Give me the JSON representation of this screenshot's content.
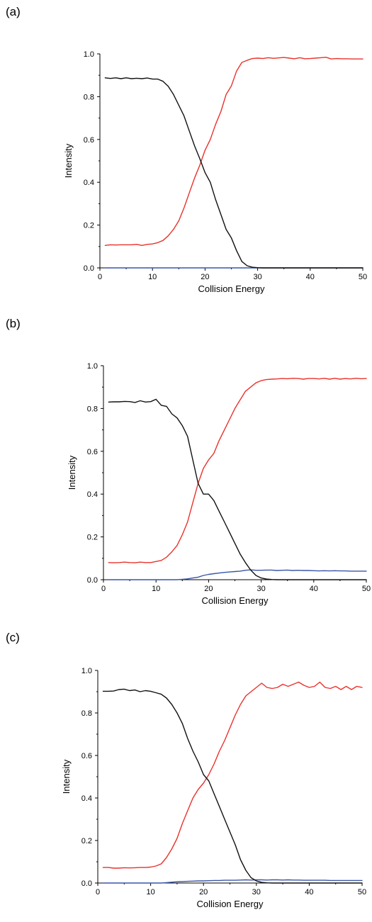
{
  "colors": {
    "black": "#111111",
    "red": "#e8322c",
    "blue": "#3a55a8"
  },
  "chart_data": [
    {
      "panel": "(a)",
      "type": "line",
      "xlabel": "Collision Energy",
      "ylabel": "Intensity",
      "xlim": [
        0,
        50
      ],
      "ylim": [
        0,
        1.0
      ],
      "xticks": [
        "0",
        "10",
        "20",
        "30",
        "40",
        "50"
      ],
      "yticks": [
        "0.0",
        "0.2",
        "0.4",
        "0.6",
        "0.8",
        "1.0"
      ],
      "x": [
        1,
        2,
        3,
        4,
        5,
        6,
        7,
        8,
        9,
        10,
        11,
        12,
        13,
        14,
        15,
        16,
        17,
        18,
        19,
        20,
        21,
        22,
        23,
        24,
        25,
        26,
        27,
        28,
        29,
        30,
        31,
        32,
        33,
        34,
        35,
        36,
        37,
        38,
        39,
        40,
        41,
        42,
        43,
        44,
        45,
        46,
        47,
        48,
        49,
        50
      ],
      "series": [
        {
          "color": "black",
          "values": [
            0.888,
            0.885,
            0.888,
            0.884,
            0.888,
            0.884,
            0.886,
            0.884,
            0.887,
            0.882,
            0.882,
            0.872,
            0.848,
            0.81,
            0.76,
            0.71,
            0.64,
            0.57,
            0.51,
            0.445,
            0.4,
            0.32,
            0.25,
            0.18,
            0.14,
            0.08,
            0.03,
            0.01,
            0.003,
            0.001,
            0,
            0,
            0,
            0,
            0,
            0,
            0,
            0,
            0,
            0,
            0,
            0,
            0,
            0,
            0,
            0,
            0,
            0,
            0,
            0
          ]
        },
        {
          "color": "red",
          "values": [
            0.105,
            0.108,
            0.107,
            0.108,
            0.108,
            0.108,
            0.11,
            0.105,
            0.11,
            0.112,
            0.118,
            0.128,
            0.15,
            0.18,
            0.22,
            0.28,
            0.35,
            0.42,
            0.48,
            0.55,
            0.6,
            0.67,
            0.73,
            0.81,
            0.85,
            0.92,
            0.96,
            0.97,
            0.978,
            0.98,
            0.978,
            0.982,
            0.979,
            0.981,
            0.983,
            0.98,
            0.977,
            0.982,
            0.977,
            0.978,
            0.98,
            0.982,
            0.984,
            0.976,
            0.978,
            0.977,
            0.977,
            0.976,
            0.976,
            0.976
          ]
        },
        {
          "color": "blue",
          "values": [
            0,
            0,
            0,
            0,
            0,
            0,
            0,
            0,
            0,
            0,
            0,
            0,
            0,
            0,
            0,
            0,
            0,
            0,
            0,
            0,
            0,
            0,
            0,
            0,
            0,
            0,
            0,
            0,
            0,
            0,
            0,
            0,
            0,
            0,
            0,
            0,
            0,
            0,
            0,
            0,
            0,
            0,
            0,
            0,
            0,
            0,
            0,
            0,
            0,
            0
          ]
        }
      ]
    },
    {
      "panel": "(b)",
      "type": "line",
      "xlabel": "Collision Energy",
      "ylabel": "Intensity",
      "xlim": [
        0,
        50
      ],
      "ylim": [
        0,
        1.0
      ],
      "xticks": [
        "0",
        "10",
        "20",
        "30",
        "40",
        "50"
      ],
      "yticks": [
        "0.0",
        "0.2",
        "0.4",
        "0.6",
        "0.8",
        "1.0"
      ],
      "x": [
        1,
        2,
        3,
        4,
        5,
        6,
        7,
        8,
        9,
        10,
        11,
        12,
        13,
        14,
        15,
        16,
        17,
        18,
        19,
        20,
        21,
        22,
        23,
        24,
        25,
        26,
        27,
        28,
        29,
        30,
        31,
        32,
        33,
        34,
        35,
        36,
        37,
        38,
        39,
        40,
        41,
        42,
        43,
        44,
        45,
        46,
        47,
        48,
        49,
        50
      ],
      "series": [
        {
          "color": "black",
          "values": [
            0.83,
            0.831,
            0.831,
            0.833,
            0.832,
            0.828,
            0.836,
            0.83,
            0.832,
            0.843,
            0.815,
            0.81,
            0.775,
            0.756,
            0.72,
            0.67,
            0.56,
            0.45,
            0.4,
            0.4,
            0.37,
            0.32,
            0.27,
            0.22,
            0.17,
            0.12,
            0.08,
            0.045,
            0.02,
            0.008,
            0.003,
            0.001,
            0,
            0,
            0,
            0,
            0,
            0,
            0,
            0,
            0,
            0,
            0,
            0,
            0,
            0,
            0,
            0,
            0,
            0
          ]
        },
        {
          "color": "red",
          "values": [
            0.08,
            0.079,
            0.08,
            0.082,
            0.08,
            0.079,
            0.082,
            0.08,
            0.08,
            0.085,
            0.09,
            0.105,
            0.13,
            0.16,
            0.21,
            0.27,
            0.36,
            0.45,
            0.52,
            0.56,
            0.59,
            0.65,
            0.7,
            0.75,
            0.8,
            0.84,
            0.88,
            0.9,
            0.92,
            0.93,
            0.935,
            0.937,
            0.938,
            0.94,
            0.939,
            0.941,
            0.94,
            0.937,
            0.94,
            0.94,
            0.938,
            0.941,
            0.937,
            0.941,
            0.937,
            0.94,
            0.938,
            0.941,
            0.939,
            0.94
          ]
        },
        {
          "color": "blue",
          "values": [
            0,
            0,
            0,
            0,
            0,
            0,
            0,
            0,
            0,
            0,
            0,
            0,
            0,
            0,
            0.002,
            0.004,
            0.008,
            0.012,
            0.02,
            0.025,
            0.028,
            0.031,
            0.034,
            0.036,
            0.038,
            0.04,
            0.044,
            0.046,
            0.044,
            0.044,
            0.045,
            0.045,
            0.043,
            0.044,
            0.045,
            0.043,
            0.044,
            0.043,
            0.043,
            0.042,
            0.041,
            0.042,
            0.041,
            0.042,
            0.041,
            0.041,
            0.04,
            0.04,
            0.04,
            0.04
          ]
        }
      ]
    },
    {
      "panel": "(c)",
      "type": "line",
      "xlabel": "Collision Energy",
      "ylabel": "Intensity",
      "xlim": [
        0,
        50
      ],
      "ylim": [
        0,
        1.0
      ],
      "xticks": [
        "0",
        "10",
        "20",
        "30",
        "40",
        "50"
      ],
      "yticks": [
        "0.0",
        "0.2",
        "0.4",
        "0.6",
        "0.8",
        "1.0"
      ],
      "x": [
        1,
        2,
        3,
        4,
        5,
        6,
        7,
        8,
        9,
        10,
        11,
        12,
        13,
        14,
        15,
        16,
        17,
        18,
        19,
        20,
        21,
        22,
        23,
        24,
        25,
        26,
        27,
        28,
        29,
        30,
        31,
        32,
        33,
        34,
        35,
        36,
        37,
        38,
        39,
        40,
        41,
        42,
        43,
        44,
        45,
        46,
        47,
        48,
        49,
        50
      ],
      "series": [
        {
          "color": "black",
          "values": [
            0.902,
            0.902,
            0.903,
            0.91,
            0.912,
            0.905,
            0.908,
            0.9,
            0.905,
            0.902,
            0.895,
            0.888,
            0.87,
            0.84,
            0.8,
            0.75,
            0.68,
            0.62,
            0.57,
            0.51,
            0.48,
            0.42,
            0.36,
            0.3,
            0.24,
            0.18,
            0.11,
            0.06,
            0.025,
            0.01,
            0.003,
            0.001,
            0,
            0,
            0,
            0,
            0,
            0,
            0,
            0,
            0,
            0,
            0,
            0,
            0,
            0,
            0,
            0,
            0,
            0
          ]
        },
        {
          "color": "red",
          "values": [
            0.073,
            0.073,
            0.07,
            0.07,
            0.072,
            0.071,
            0.072,
            0.073,
            0.073,
            0.075,
            0.08,
            0.09,
            0.12,
            0.16,
            0.21,
            0.28,
            0.34,
            0.4,
            0.44,
            0.47,
            0.51,
            0.56,
            0.62,
            0.67,
            0.73,
            0.79,
            0.84,
            0.88,
            0.9,
            0.92,
            0.94,
            0.92,
            0.915,
            0.92,
            0.935,
            0.925,
            0.935,
            0.945,
            0.93,
            0.92,
            0.925,
            0.945,
            0.92,
            0.915,
            0.925,
            0.91,
            0.925,
            0.91,
            0.925,
            0.92
          ]
        },
        {
          "color": "blue",
          "values": [
            0,
            0,
            0,
            0,
            0,
            0,
            0,
            0,
            0,
            0,
            0,
            0,
            0.002,
            0.004,
            0.006,
            0.007,
            0.008,
            0.009,
            0.01,
            0.01,
            0.011,
            0.012,
            0.012,
            0.013,
            0.013,
            0.013,
            0.014,
            0.015,
            0.014,
            0.015,
            0.015,
            0.014,
            0.015,
            0.015,
            0.014,
            0.015,
            0.014,
            0.014,
            0.013,
            0.013,
            0.013,
            0.013,
            0.013,
            0.012,
            0.012,
            0.012,
            0.012,
            0.012,
            0.012,
            0.012
          ]
        }
      ]
    }
  ]
}
